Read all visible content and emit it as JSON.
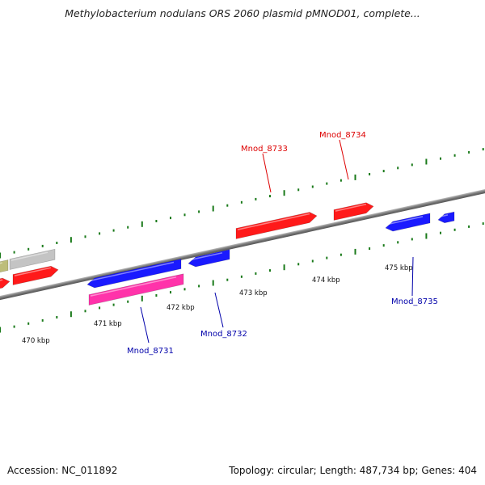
{
  "title": "Methylobacterium nodulans ORS 2060 plasmid pMNOD01, complete...",
  "footer": {
    "accession": "Accession: NC_011892",
    "summary": "Topology: circular; Length: 487,734 bp; Genes: 404"
  },
  "colors": {
    "backbone": "#8a8a8a",
    "tick": "#1a7a1a",
    "forward_gene": "#ff1a1a",
    "reverse_gene": "#1a1aff",
    "pink_gene": "#ff33aa",
    "grey_gene": "#c4c4c4",
    "olive_gene": "#bdbd7a",
    "forward_label": "#dd0000",
    "reverse_label": "#0000aa"
  },
  "tick_labels": [
    {
      "text": "470 kbp",
      "kbp": 470
    },
    {
      "text": "471 kbp",
      "kbp": 471
    },
    {
      "text": "472 kbp",
      "kbp": 472
    },
    {
      "text": "473 kbp",
      "kbp": 473
    },
    {
      "text": "474 kbp",
      "kbp": 474
    },
    {
      "text": "475 kbp",
      "kbp": 475
    }
  ],
  "gene_labels": [
    {
      "name": "Mnod_8733",
      "strand": "forward"
    },
    {
      "name": "Mnod_8734",
      "strand": "forward"
    },
    {
      "name": "Mnod_8731",
      "strand": "reverse"
    },
    {
      "name": "Mnod_8732",
      "strand": "reverse"
    },
    {
      "name": "Mnod_8735",
      "strand": "reverse"
    }
  ]
}
